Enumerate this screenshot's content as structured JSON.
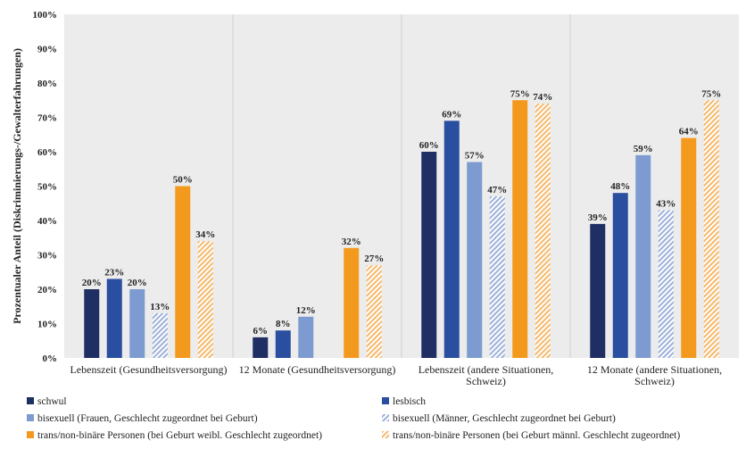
{
  "chart_data": {
    "type": "bar",
    "ylabel": "Prozentualer Anteil (Diskriminierungs-/Gewalterfahrungen)",
    "ylim": [
      0,
      100
    ],
    "yticks": [
      0,
      10,
      20,
      30,
      40,
      50,
      60,
      70,
      80,
      90,
      100
    ],
    "ytick_labels": [
      "0%",
      "10%",
      "20%",
      "30%",
      "40%",
      "50%",
      "60%",
      "70%",
      "80%",
      "90%",
      "100%"
    ],
    "grid": false,
    "legend_position": "bottom",
    "categories": [
      [
        "Lebenszeit (Gesundheitsversorgung)"
      ],
      [
        "12 Monate (Gesundheitsversorgung)"
      ],
      [
        "Lebenszeit (andere Situationen,",
        "Schweiz)"
      ],
      [
        "12 Monate (andere Situationen,",
        "Schweiz)"
      ]
    ],
    "series": [
      {
        "name": "schwul",
        "color": "#1f2f63",
        "pattern": "solid",
        "values": [
          20,
          6,
          60,
          39
        ],
        "labels": [
          "20%",
          "6%",
          "60%",
          "39%"
        ]
      },
      {
        "name": "lesbisch",
        "color": "#2a4ea0",
        "pattern": "solid",
        "values": [
          23,
          8,
          69,
          48
        ],
        "labels": [
          "23%",
          "8%",
          "69%",
          "48%"
        ]
      },
      {
        "name": "bisexuell (Frauen, Geschlecht zugeordnet bei Geburt)",
        "color": "#7d9bd0",
        "pattern": "solid",
        "values": [
          20,
          12,
          57,
          59
        ],
        "labels": [
          "20%",
          "12%",
          "57%",
          "59%"
        ]
      },
      {
        "name": "bisexuell (Männer, Geschlecht zugeordnet bei Geburt)",
        "color": "#9db0da",
        "pattern": "hatch",
        "values": [
          13,
          null,
          47,
          43
        ],
        "labels": [
          "13%",
          "",
          "47%",
          "43%"
        ]
      },
      {
        "name": "trans/non-binäre Personen (bei Geburt weibl. Geschlecht zugeordnet)",
        "color": "#f39a1e",
        "pattern": "solid",
        "values": [
          50,
          32,
          75,
          64
        ],
        "labels": [
          "50%",
          "32%",
          "75%",
          "64%"
        ]
      },
      {
        "name": "trans/non-binäre Personen (bei Geburt männl. Geschlecht zugeordnet)",
        "color": "#f6b86a",
        "pattern": "hatch",
        "values": [
          34,
          27,
          74,
          75
        ],
        "labels": [
          "34%",
          "27%",
          "74%",
          "75%"
        ]
      }
    ]
  }
}
